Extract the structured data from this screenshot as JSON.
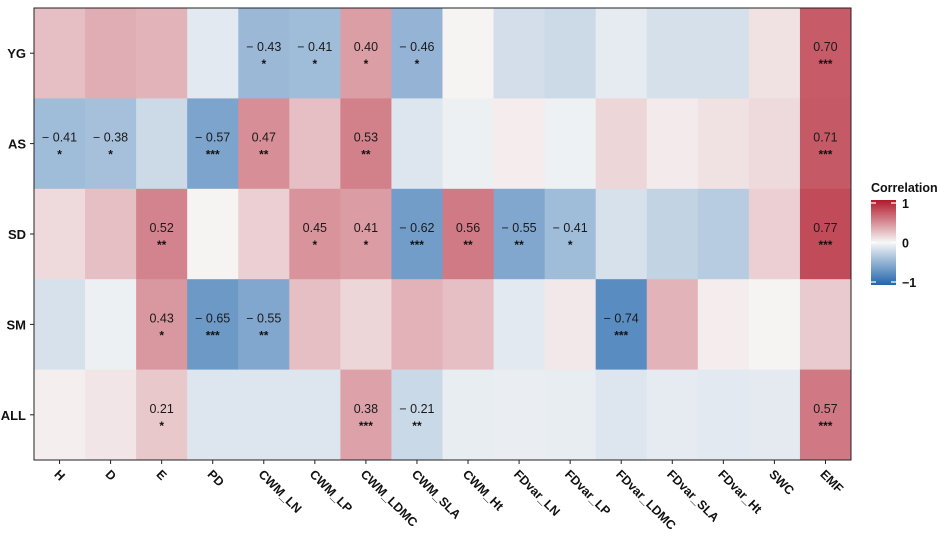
{
  "chart_data": {
    "type": "heatmap",
    "rows": [
      "YG",
      "AS",
      "SD",
      "SM",
      "ALL"
    ],
    "columns": [
      "H",
      "D",
      "E",
      "PD",
      "CWM_LN",
      "CWM_LP",
      "CWM_LDMC",
      "CWM_SLA",
      "CWM_Ht",
      "FDvar_LN",
      "FDvar_LP",
      "FDvar_LDMC",
      "FDvar_SLA",
      "FDvar_Ht",
      "SWC",
      "EMF"
    ],
    "values": [
      [
        0.25,
        0.33,
        0.3,
        -0.1,
        -0.43,
        -0.41,
        0.4,
        -0.46,
        0.02,
        -0.17,
        -0.2,
        -0.08,
        -0.16,
        -0.16,
        0.1,
        0.7
      ],
      [
        -0.41,
        -0.38,
        -0.2,
        -0.57,
        0.47,
        0.25,
        0.53,
        -0.12,
        -0.05,
        0.05,
        -0.04,
        0.15,
        0.06,
        0.1,
        0.13,
        0.71
      ],
      [
        0.13,
        0.25,
        0.52,
        0.02,
        0.18,
        0.45,
        0.41,
        -0.62,
        0.56,
        -0.55,
        -0.41,
        -0.15,
        -0.25,
        -0.3,
        0.18,
        0.77
      ],
      [
        -0.15,
        -0.05,
        0.43,
        -0.65,
        -0.55,
        0.25,
        0.15,
        0.31,
        0.25,
        -0.1,
        0.07,
        -0.74,
        0.3,
        0.05,
        0.02,
        0.2
      ],
      [
        0.04,
        0.08,
        0.21,
        -0.12,
        -0.12,
        -0.12,
        0.38,
        -0.21,
        -0.07,
        -0.06,
        -0.07,
        -0.12,
        -0.08,
        -0.1,
        -0.09,
        0.57
      ]
    ],
    "labels": [
      [
        "",
        "",
        "",
        "",
        "− 0.43",
        "− 0.41",
        "0.40",
        "− 0.46",
        "",
        "",
        "",
        "",
        "",
        "",
        "",
        "0.70"
      ],
      [
        "− 0.41",
        "− 0.38",
        "",
        "− 0.57",
        "0.47",
        "",
        "0.53",
        "",
        "",
        "",
        "",
        "",
        "",
        "",
        "",
        "0.71"
      ],
      [
        "",
        "",
        "0.52",
        "",
        "",
        "0.45",
        "0.41",
        "− 0.62",
        "0.56",
        "− 0.55",
        "− 0.41",
        "",
        "",
        "",
        "",
        "0.77"
      ],
      [
        "",
        "",
        "0.43",
        "− 0.65",
        "− 0.55",
        "",
        "",
        "",
        "",
        "",
        "",
        "− 0.74",
        "",
        "",
        "",
        ""
      ],
      [
        "",
        "",
        "0.21",
        "",
        "",
        "",
        "0.38",
        "− 0.21",
        "",
        "",
        "",
        "",
        "",
        "",
        "",
        "0.57"
      ]
    ],
    "significance": [
      [
        "",
        "",
        "",
        "",
        "*",
        "*",
        "*",
        "*",
        "",
        "",
        "",
        "",
        "",
        "",
        "",
        "***"
      ],
      [
        "*",
        "*",
        "",
        "***",
        "**",
        "",
        "**",
        "",
        "",
        "",
        "",
        "",
        "",
        "",
        "",
        "***"
      ],
      [
        "",
        "",
        "**",
        "",
        "",
        "*",
        "*",
        "***",
        "**",
        "**",
        "*",
        "",
        "",
        "",
        "",
        "***"
      ],
      [
        "",
        "",
        "*",
        "***",
        "**",
        "",
        "",
        "",
        "",
        "",
        "",
        "***",
        "",
        "",
        "",
        ""
      ],
      [
        "",
        "",
        "*",
        "",
        "",
        "",
        "***",
        "**",
        "",
        "",
        "",
        "",
        "",
        "",
        "",
        "***"
      ]
    ],
    "colorscale": {
      "low": "#2166ac",
      "mid": "#f7f7f7",
      "high": "#b2182b",
      "min": -1,
      "max": 1
    },
    "legend": {
      "title": "Correlation",
      "ticks": [
        "1",
        "0",
        "−1"
      ],
      "placement": "right"
    },
    "xlabel": "",
    "ylabel": ""
  }
}
